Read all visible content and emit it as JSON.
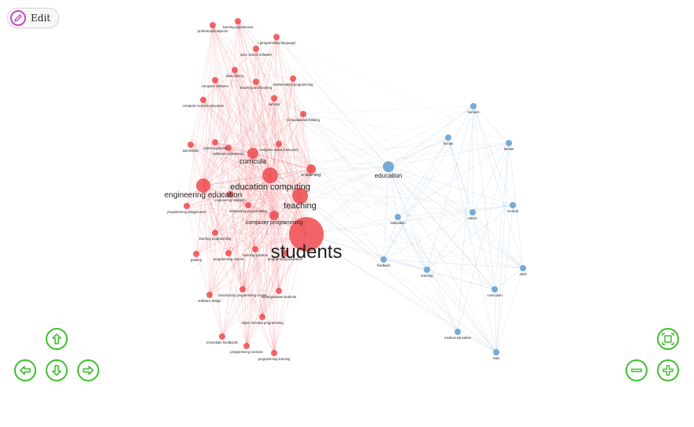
{
  "toolbar": {
    "edit_label": "Edit"
  },
  "colors": {
    "cluster_red": "#ef4a4f",
    "cluster_blue": "#6fa6d6",
    "nav_green": "#3fbf2f",
    "edit_purple": "#c44cc4"
  },
  "navigation": {
    "icons": [
      "arrow-up-icon",
      "arrow-left-icon",
      "arrow-down-icon",
      "arrow-right-icon",
      "fit-view-icon",
      "zoom-out-icon",
      "zoom-in-icon"
    ]
  },
  "graph": {
    "nodes": [
      {
        "id": "students",
        "label": "students",
        "group": "red",
        "size": 22
      },
      {
        "id": "teaching",
        "label": "teaching",
        "group": "red",
        "size": 10
      },
      {
        "id": "education_computing",
        "label": "education computing",
        "group": "red",
        "size": 10
      },
      {
        "id": "engineering_education",
        "label": "engineering education",
        "group": "red",
        "size": 9
      },
      {
        "id": "curricula",
        "label": "curricula",
        "group": "red",
        "size": 7
      },
      {
        "id": "computer_programming",
        "label": "computer programming",
        "group": "red",
        "size": 6
      },
      {
        "id": "e_learning",
        "label": "e-learning",
        "group": "red",
        "size": 6
      },
      {
        "id": "learning_experiences",
        "label": "learning experiences",
        "group": "red",
        "size": 4
      },
      {
        "id": "professional_aspects",
        "label": "professional aspects",
        "group": "red",
        "size": 4
      },
      {
        "id": "c_language",
        "label": "c (programming language)",
        "group": "red",
        "size": 4
      },
      {
        "id": "open_source",
        "label": "open source software",
        "group": "red",
        "size": 4
      },
      {
        "id": "data_mining",
        "label": "data mining",
        "group": "red",
        "size": 4
      },
      {
        "id": "computer_software",
        "label": "computer software",
        "group": "red",
        "size": 4
      },
      {
        "id": "teaching_learning",
        "label": "teaching and learning",
        "group": "red",
        "size": 4
      },
      {
        "id": "mathematical_programming",
        "label": "mathematical programming",
        "group": "red",
        "size": 4
      },
      {
        "id": "computer_science_education",
        "label": "computer science education",
        "group": "red",
        "size": 4
      },
      {
        "id": "surveys",
        "label": "surveys",
        "group": "red",
        "size": 4
      },
      {
        "id": "computational_thinking",
        "label": "computational thinking",
        "group": "red",
        "size": 4
      },
      {
        "id": "automation",
        "label": "automation",
        "group": "red",
        "size": 4
      },
      {
        "id": "codes_symbols",
        "label": "codes (symbols)",
        "group": "red",
        "size": 4
      },
      {
        "id": "software_engineering",
        "label": "software engineering",
        "group": "red",
        "size": 4
      },
      {
        "id": "computer_aided_instruction",
        "label": "computer aided instruction",
        "group": "red",
        "size": 4
      },
      {
        "id": "engineering_research",
        "label": "engineering research",
        "group": "red",
        "size": 4
      },
      {
        "id": "introductory_programming",
        "label": "introductory programming",
        "group": "red",
        "size": 4
      },
      {
        "id": "programming_assignments",
        "label": "programming assignments",
        "group": "red",
        "size": 4
      },
      {
        "id": "learning_programming",
        "label": "learning programming",
        "group": "red",
        "size": 4
      },
      {
        "id": "grading",
        "label": "grading",
        "group": "red",
        "size": 4
      },
      {
        "id": "programming_course",
        "label": "programming course",
        "group": "red",
        "size": 4
      },
      {
        "id": "learning_systems",
        "label": "learning systems",
        "group": "red",
        "size": 4
      },
      {
        "id": "programming_education",
        "label": "programming education",
        "group": "red",
        "size": 4
      },
      {
        "id": "introductory_programming_course",
        "label": "introductory programming course",
        "group": "red",
        "size": 4
      },
      {
        "id": "undergraduate_students",
        "label": "undergraduate students",
        "group": "red",
        "size": 4
      },
      {
        "id": "software_design",
        "label": "software design",
        "group": "red",
        "size": 4
      },
      {
        "id": "object_oriented_programming",
        "label": "object oriented programming",
        "group": "red",
        "size": 4
      },
      {
        "id": "immediate_feedbacks",
        "label": "immediate feedbacks",
        "group": "red",
        "size": 4
      },
      {
        "id": "programming_exercise",
        "label": "programming exercise",
        "group": "red",
        "size": 4
      },
      {
        "id": "programming_learning",
        "label": "programming learning",
        "group": "red",
        "size": 4
      },
      {
        "id": "education",
        "label": "education",
        "group": "blue",
        "size": 7
      },
      {
        "id": "humans",
        "label": "humans",
        "group": "blue",
        "size": 4
      },
      {
        "id": "human",
        "label": "human",
        "group": "blue",
        "size": 4
      },
      {
        "id": "female",
        "label": "female",
        "group": "blue",
        "size": 4
      },
      {
        "id": "motivation",
        "label": "motivation",
        "group": "blue",
        "size": 4
      },
      {
        "id": "article",
        "label": "article",
        "group": "blue",
        "size": 4
      },
      {
        "id": "medical",
        "label": "medical",
        "group": "blue",
        "size": 4
      },
      {
        "id": "feedback",
        "label": "feedback",
        "group": "blue",
        "size": 4
      },
      {
        "id": "learning",
        "label": "learning",
        "group": "blue",
        "size": 4
      },
      {
        "id": "adult",
        "label": "adult",
        "group": "blue",
        "size": 4
      },
      {
        "id": "curriculum",
        "label": "curriculum",
        "group": "blue",
        "size": 4
      },
      {
        "id": "medical_education",
        "label": "medical education",
        "group": "blue",
        "size": 4
      },
      {
        "id": "male",
        "label": "male",
        "group": "blue",
        "size": 4
      }
    ]
  }
}
